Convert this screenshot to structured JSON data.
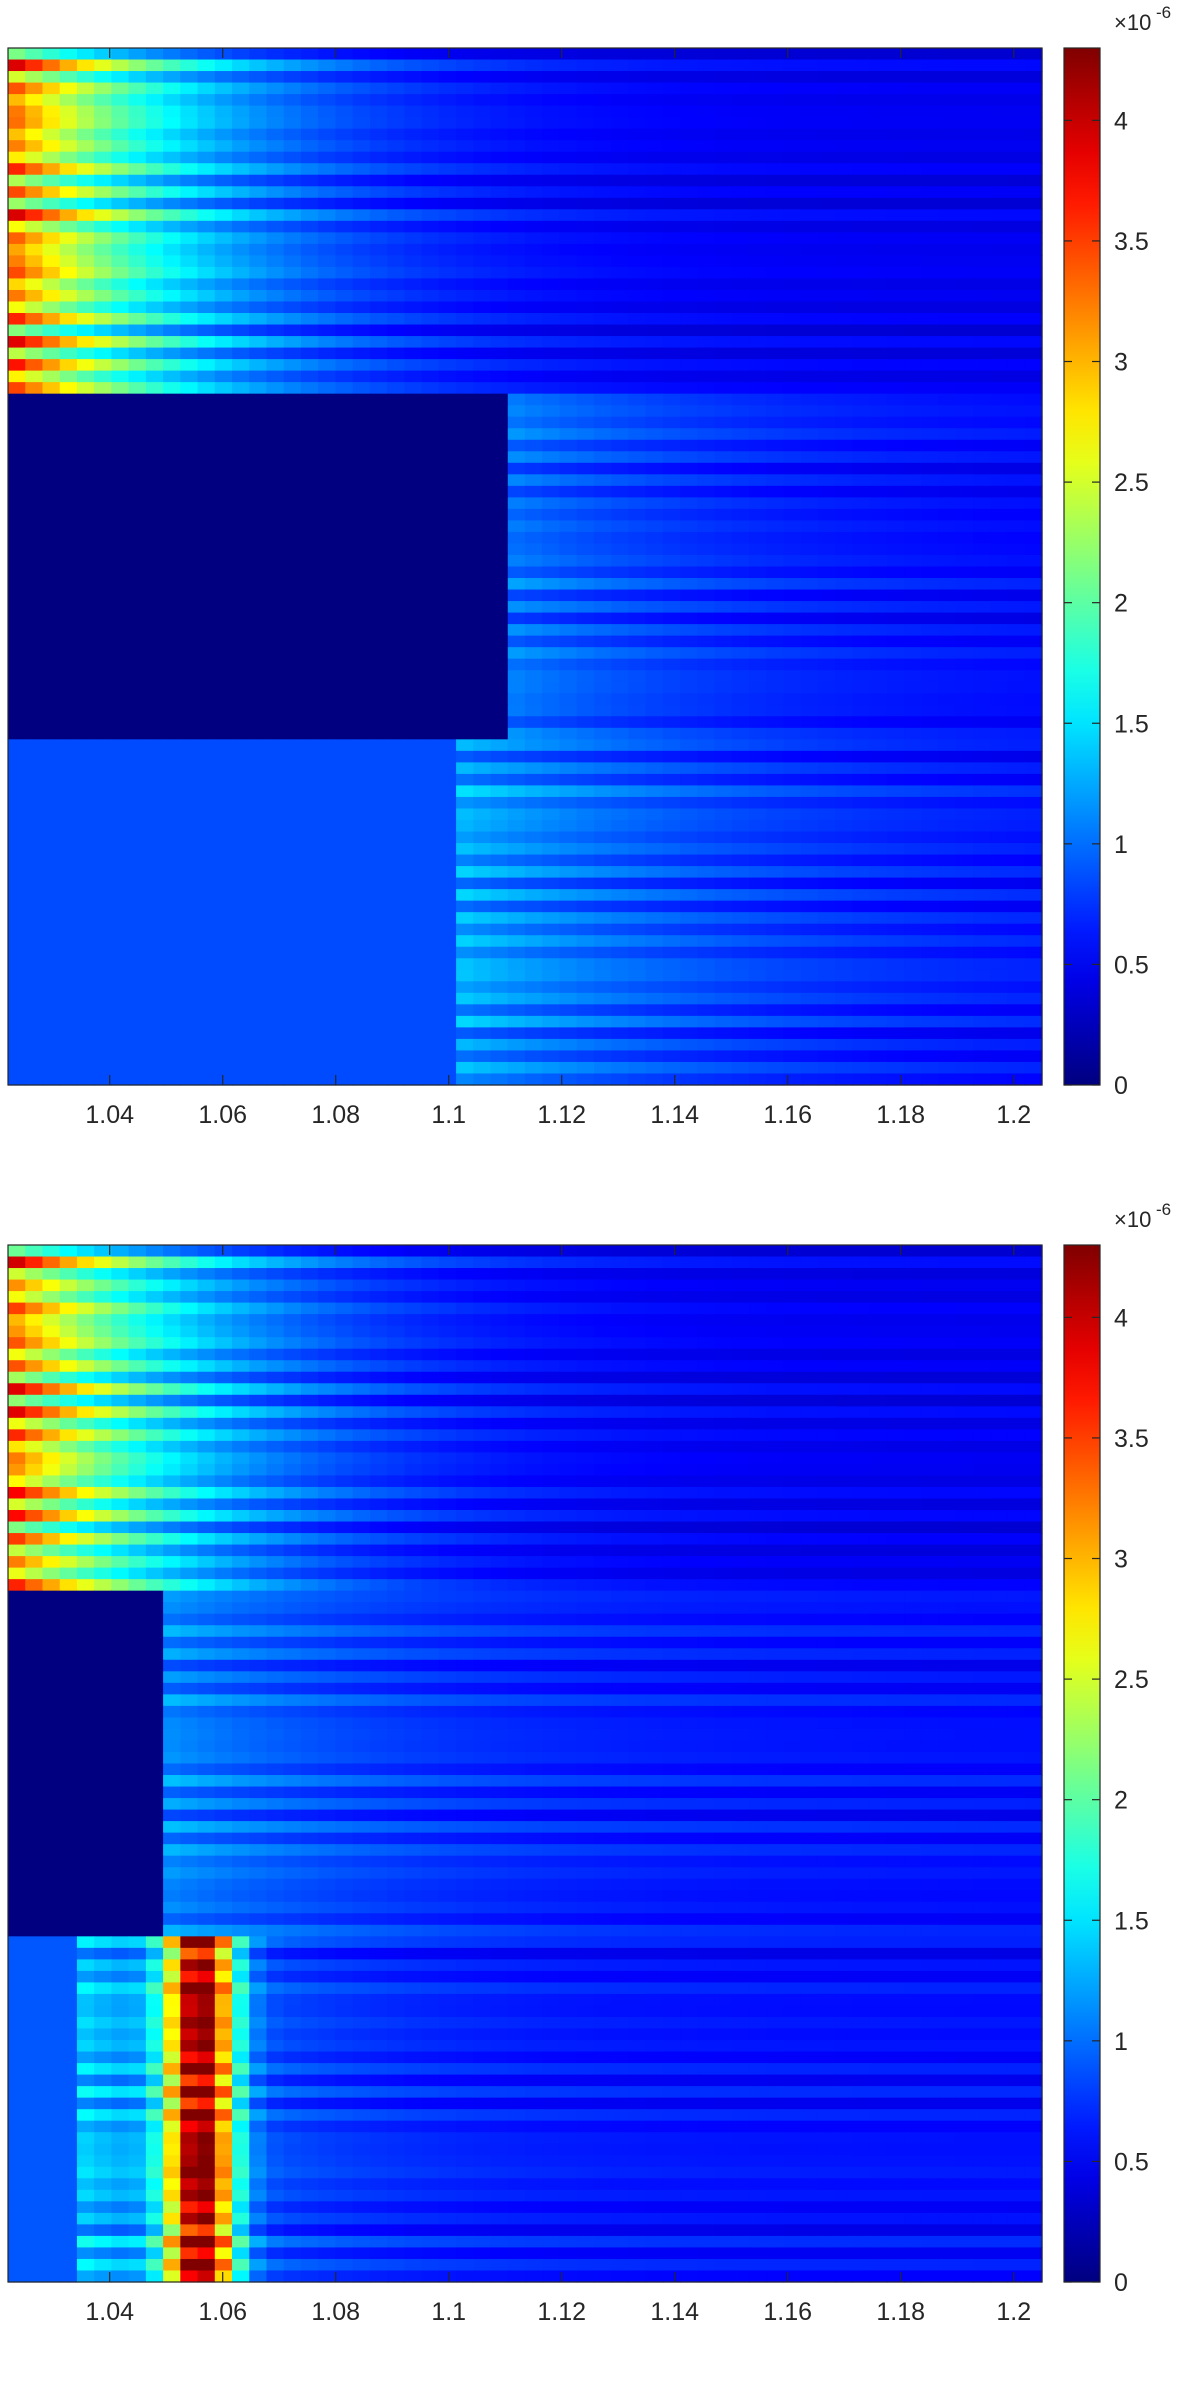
{
  "chart_data": [
    {
      "type": "heatmap",
      "title": "",
      "xlabel": "",
      "ylabel": "",
      "colormap": "jet",
      "xlim": [
        1.022,
        1.205
      ],
      "x_ticks": [
        "1.04",
        "1.06",
        "1.08",
        "1.1",
        "1.12",
        "1.14",
        "1.16",
        "1.18",
        "1.2"
      ],
      "x_tick_values": [
        1.04,
        1.06,
        1.08,
        1.1,
        1.12,
        1.14,
        1.16,
        1.18,
        1.2
      ],
      "clim": [
        0,
        4.3e-06
      ],
      "colorbar_ticks": [
        "0",
        "0.5",
        "1",
        "1.5",
        "2",
        "2.5",
        "3",
        "3.5",
        "4"
      ],
      "colorbar_tick_values": [
        0,
        0.5,
        1,
        1.5,
        2,
        2.5,
        3,
        3.5,
        4
      ],
      "colorbar_exponent": "×10",
      "colorbar_exponent_power": "-6",
      "bands": [
        {
          "rows": 30,
          "x_start": 1.022,
          "start_level": 3.2,
          "mid_level": 1.6,
          "end_level": 0.4,
          "decay": 0.03
        },
        {
          "rows": 30,
          "x_start": 1.111,
          "start_level": 0.0,
          "mid_level": 0.9,
          "end_level": 0.45,
          "decay": 0.04
        },
        {
          "rows": 30,
          "x_start": 1.1,
          "start_level": 0.85,
          "mid_level": 1.1,
          "end_level": 0.45,
          "decay": 0.05
        }
      ],
      "notes_colors": {
        "background": "#ffffff",
        "axis": "#262626"
      }
    },
    {
      "type": "heatmap",
      "title": "",
      "xlabel": "",
      "ylabel": "",
      "colormap": "jet",
      "xlim": [
        1.022,
        1.205
      ],
      "x_ticks": [
        "1.04",
        "1.06",
        "1.08",
        "1.1",
        "1.12",
        "1.14",
        "1.16",
        "1.18",
        "1.2"
      ],
      "x_tick_values": [
        1.04,
        1.06,
        1.08,
        1.1,
        1.12,
        1.14,
        1.16,
        1.18,
        1.2
      ],
      "clim": [
        0,
        4.3e-06
      ],
      "colorbar_ticks": [
        "0",
        "0.5",
        "1",
        "1.5",
        "2",
        "2.5",
        "3",
        "3.5",
        "4"
      ],
      "colorbar_tick_values": [
        0,
        0.5,
        1,
        1.5,
        2,
        2.5,
        3,
        3.5,
        4
      ],
      "colorbar_exponent": "×10",
      "colorbar_exponent_power": "-6",
      "bands": [
        {
          "rows": 30,
          "x_start": 1.022,
          "start_level": 3.3,
          "mid_level": 1.5,
          "end_level": 0.4,
          "decay": 0.03
        },
        {
          "rows": 30,
          "x_start": 1.048,
          "start_level": 0.0,
          "mid_level": 1.0,
          "end_level": 0.5,
          "decay": 0.04
        },
        {
          "rows": 30,
          "x_start": 1.035,
          "start_level": 0.9,
          "mid_level": 1.2,
          "end_level": 0.5,
          "decay": 0.03,
          "hot_x": 1.056,
          "hot_level": 3.8
        }
      ],
      "notes_colors": {
        "background": "#ffffff",
        "axis": "#262626"
      }
    }
  ]
}
